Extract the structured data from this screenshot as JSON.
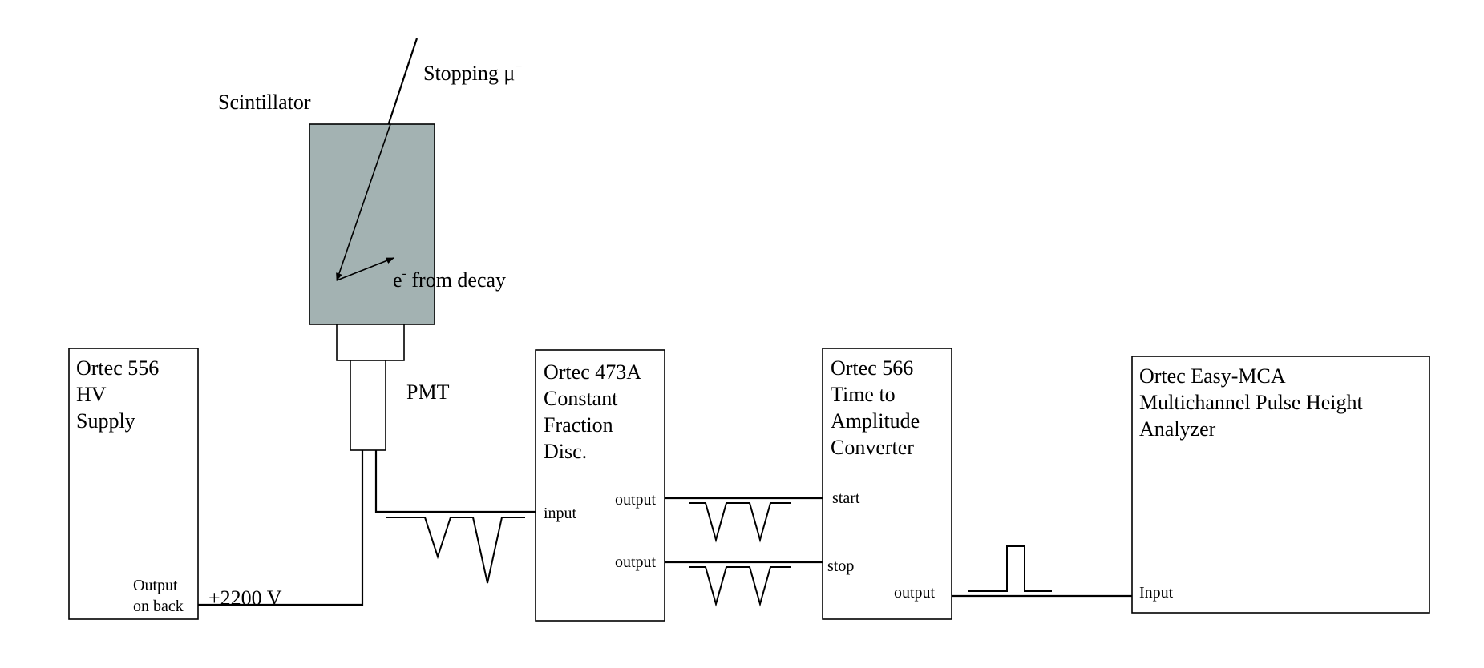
{
  "colors": {
    "scintillator_fill": "#a3b2b2",
    "line": "#000000",
    "background": "#ffffff"
  },
  "labels": {
    "stopping_muon": "Stopping μ",
    "stopping_muon_sup": "−",
    "scintillator": "Scintillator",
    "decay_e": "e",
    "decay_e_sup": "-",
    "decay_rest": " from decay",
    "pmt": "PMT",
    "voltage": "+2200 V"
  },
  "hv_supply": {
    "lines": [
      "Ortec 556",
      "HV",
      "Supply"
    ],
    "port": [
      "Output",
      "on back"
    ]
  },
  "cfd": {
    "lines": [
      "Ortec 473A",
      "Constant",
      "Fraction",
      "Disc."
    ],
    "input": "input",
    "output_1": "output",
    "output_2": "output"
  },
  "tac": {
    "lines": [
      "Ortec 566",
      "Time to",
      "Amplitude",
      "Converter"
    ],
    "start": "start",
    "stop": "stop",
    "output": "output"
  },
  "mca": {
    "lines": [
      "Ortec Easy-MCA",
      "Multichannel Pulse Height",
      "Analyzer"
    ],
    "input": "Input"
  }
}
